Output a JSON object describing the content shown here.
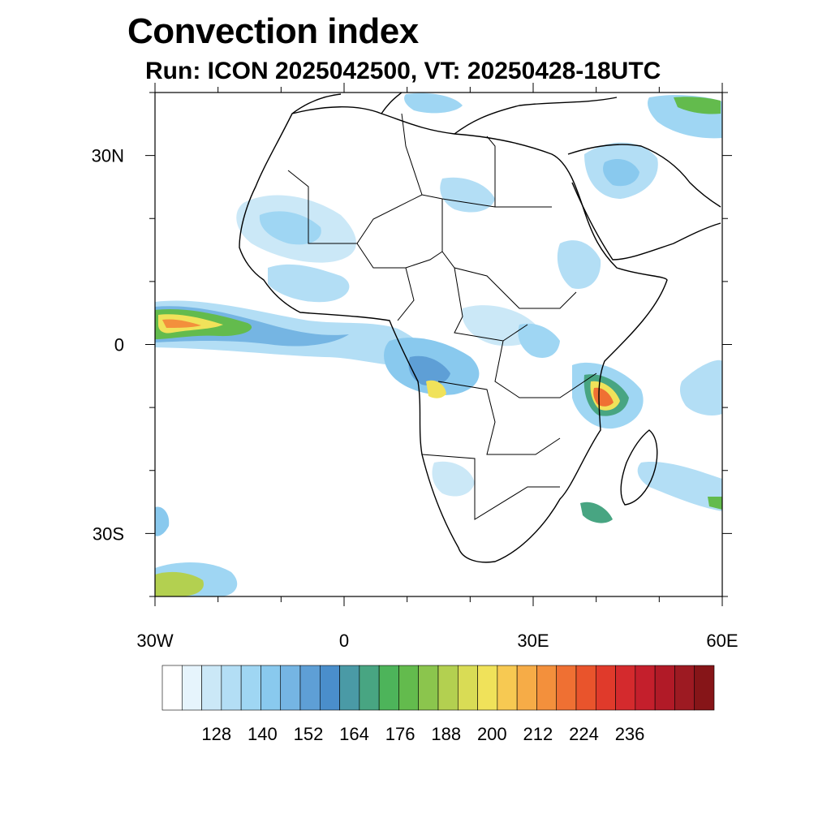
{
  "title": "Convection index",
  "subtitle": "Run: ICON 2025042500,  VT: 20250428-18UTC",
  "map": {
    "lon_range": [
      -30,
      60
    ],
    "lat_range": [
      -40,
      40
    ],
    "lon_ticks": [
      {
        "value": -30,
        "label": "30W"
      },
      {
        "value": 0,
        "label": "0"
      },
      {
        "value": 30,
        "label": "30E"
      },
      {
        "value": 60,
        "label": "60E"
      }
    ],
    "lat_ticks": [
      {
        "value": 30,
        "label": "30N"
      },
      {
        "value": 0,
        "label": "0"
      },
      {
        "value": -30,
        "label": "30S"
      }
    ],
    "field": "convection index",
    "strongest_cells": [
      "off equatorial West Africa (near 0N, 30W-15W)",
      "East African coast / Tanzania (near 5S, 40E)"
    ]
  },
  "colorbar": {
    "labels": [
      "128",
      "140",
      "152",
      "164",
      "176",
      "188",
      "200",
      "212",
      "224",
      "236"
    ],
    "colors": [
      "#ffffff",
      "#e6f4fc",
      "#cbe8f7",
      "#b3def5",
      "#9fd6f3",
      "#89c9ee",
      "#75b5e3",
      "#5e9fd6",
      "#4a8ecb",
      "#4a9aa6",
      "#48a582",
      "#4db45a",
      "#63bb4d",
      "#8bc54d",
      "#b3d050",
      "#d9dc55",
      "#f0e25a",
      "#f7c952",
      "#f6ac47",
      "#f3903c",
      "#ef7033",
      "#e9542c",
      "#e03a2b",
      "#d42a2d",
      "#c41f2c",
      "#b11a27",
      "#9d1a22",
      "#861518"
    ]
  }
}
